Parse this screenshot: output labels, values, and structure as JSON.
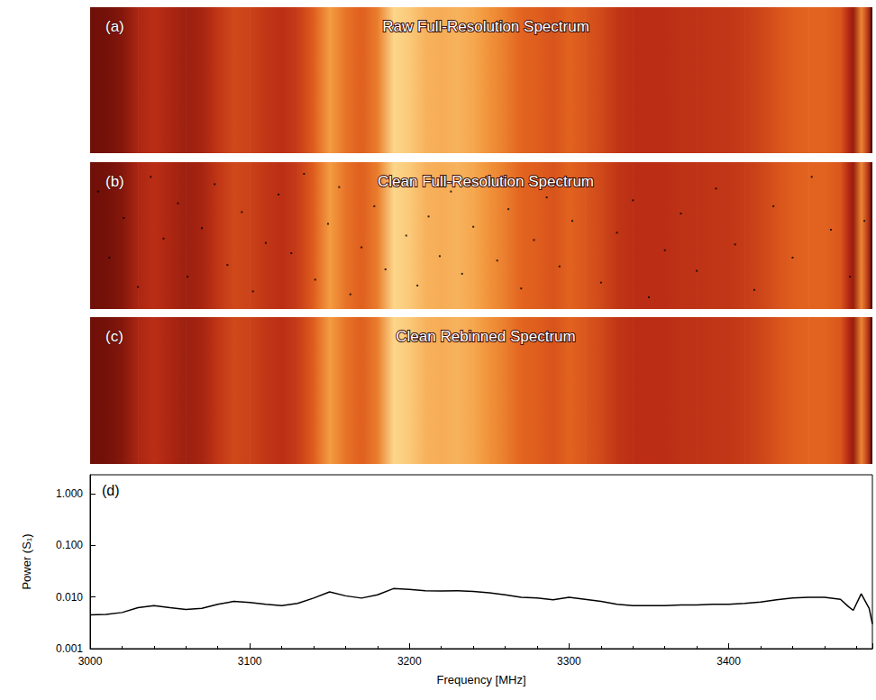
{
  "chart_data": [
    {
      "type": "heatmap",
      "label": "(a)",
      "title": "Raw Full-Resolution Spectrum",
      "xlim": [
        3000,
        3490
      ],
      "ylim": [
        0,
        1
      ],
      "tick_labels": false,
      "x": [
        3000,
        3010,
        3020,
        3030,
        3040,
        3050,
        3060,
        3070,
        3080,
        3090,
        3100,
        3110,
        3120,
        3130,
        3140,
        3150,
        3160,
        3170,
        3180,
        3190,
        3200,
        3210,
        3220,
        3230,
        3240,
        3250,
        3260,
        3270,
        3280,
        3290,
        3300,
        3310,
        3320,
        3330,
        3340,
        3350,
        3360,
        3370,
        3380,
        3390,
        3400,
        3410,
        3420,
        3430,
        3440,
        3450,
        3460,
        3470,
        3475,
        3478,
        3483,
        3488,
        3490
      ],
      "values": [
        0.0045,
        0.0046,
        0.005,
        0.0062,
        0.0068,
        0.0062,
        0.0057,
        0.006,
        0.0072,
        0.0082,
        0.0078,
        0.0072,
        0.0068,
        0.0075,
        0.0095,
        0.0125,
        0.0105,
        0.0095,
        0.011,
        0.0145,
        0.014,
        0.0132,
        0.013,
        0.0132,
        0.0128,
        0.012,
        0.011,
        0.0098,
        0.0095,
        0.0088,
        0.0098,
        0.009,
        0.0082,
        0.0072,
        0.0068,
        0.0068,
        0.0068,
        0.007,
        0.007,
        0.0072,
        0.0072,
        0.0075,
        0.008,
        0.0088,
        0.0095,
        0.0098,
        0.0098,
        0.009,
        0.0065,
        0.0055,
        0.0115,
        0.006,
        0.003
      ]
    },
    {
      "type": "heatmap",
      "label": "(b)",
      "title": "Clean Full-Resolution Spectrum",
      "xlim": [
        3000,
        3490
      ],
      "ylim": [
        0,
        1
      ],
      "tick_labels": false,
      "x": [
        3000,
        3010,
        3020,
        3030,
        3040,
        3050,
        3060,
        3070,
        3080,
        3090,
        3100,
        3110,
        3120,
        3130,
        3140,
        3150,
        3160,
        3170,
        3180,
        3190,
        3200,
        3210,
        3220,
        3230,
        3240,
        3250,
        3260,
        3270,
        3280,
        3290,
        3300,
        3310,
        3320,
        3330,
        3340,
        3350,
        3360,
        3370,
        3380,
        3390,
        3400,
        3410,
        3420,
        3430,
        3440,
        3450,
        3460,
        3470,
        3475,
        3478,
        3483,
        3488,
        3490
      ],
      "values": [
        0.0045,
        0.0046,
        0.005,
        0.0062,
        0.0068,
        0.0062,
        0.0057,
        0.006,
        0.0072,
        0.0082,
        0.0078,
        0.0072,
        0.0068,
        0.0075,
        0.0095,
        0.0125,
        0.0105,
        0.0095,
        0.011,
        0.0145,
        0.014,
        0.0132,
        0.013,
        0.0132,
        0.0128,
        0.012,
        0.011,
        0.0098,
        0.0095,
        0.0088,
        0.0098,
        0.009,
        0.0082,
        0.0072,
        0.0068,
        0.0068,
        0.0068,
        0.007,
        0.007,
        0.0072,
        0.0072,
        0.0075,
        0.008,
        0.0088,
        0.0095,
        0.0098,
        0.0098,
        0.009,
        0.0065,
        0.0055,
        0.0115,
        0.006,
        0.003
      ],
      "flagged": [
        [
          3005,
          0.8
        ],
        [
          3012,
          0.35
        ],
        [
          3021,
          0.62
        ],
        [
          3030,
          0.15
        ],
        [
          3038,
          0.9
        ],
        [
          3046,
          0.48
        ],
        [
          3055,
          0.72
        ],
        [
          3061,
          0.22
        ],
        [
          3070,
          0.55
        ],
        [
          3078,
          0.85
        ],
        [
          3086,
          0.3
        ],
        [
          3095,
          0.66
        ],
        [
          3102,
          0.12
        ],
        [
          3110,
          0.45
        ],
        [
          3118,
          0.78
        ],
        [
          3126,
          0.38
        ],
        [
          3134,
          0.92
        ],
        [
          3141,
          0.2
        ],
        [
          3149,
          0.58
        ],
        [
          3156,
          0.83
        ],
        [
          3163,
          0.1
        ],
        [
          3170,
          0.42
        ],
        [
          3178,
          0.7
        ],
        [
          3185,
          0.27
        ],
        [
          3192,
          0.88
        ],
        [
          3198,
          0.5
        ],
        [
          3205,
          0.16
        ],
        [
          3212,
          0.63
        ],
        [
          3219,
          0.36
        ],
        [
          3226,
          0.8
        ],
        [
          3233,
          0.24
        ],
        [
          3240,
          0.56
        ],
        [
          3248,
          0.9
        ],
        [
          3255,
          0.33
        ],
        [
          3262,
          0.68
        ],
        [
          3270,
          0.14
        ],
        [
          3278,
          0.47
        ],
        [
          3286,
          0.76
        ],
        [
          3294,
          0.29
        ],
        [
          3302,
          0.6
        ],
        [
          3311,
          0.86
        ],
        [
          3320,
          0.18
        ],
        [
          3330,
          0.52
        ],
        [
          3340,
          0.74
        ],
        [
          3350,
          0.08
        ],
        [
          3360,
          0.4
        ],
        [
          3370,
          0.65
        ],
        [
          3380,
          0.26
        ],
        [
          3392,
          0.82
        ],
        [
          3404,
          0.44
        ],
        [
          3416,
          0.13
        ],
        [
          3428,
          0.7
        ],
        [
          3440,
          0.35
        ],
        [
          3452,
          0.9
        ],
        [
          3464,
          0.54
        ],
        [
          3476,
          0.22
        ],
        [
          3485,
          0.6
        ]
      ]
    },
    {
      "type": "heatmap",
      "label": "(c)",
      "title": "Clean Rebinned Spectrum",
      "xlim": [
        3000,
        3490
      ],
      "ylim": [
        0,
        1
      ],
      "tick_labels": false,
      "x": [
        3000,
        3010,
        3020,
        3030,
        3040,
        3050,
        3060,
        3070,
        3080,
        3090,
        3100,
        3110,
        3120,
        3130,
        3140,
        3150,
        3160,
        3170,
        3180,
        3190,
        3200,
        3210,
        3220,
        3230,
        3240,
        3250,
        3260,
        3270,
        3280,
        3290,
        3300,
        3310,
        3320,
        3330,
        3340,
        3350,
        3360,
        3370,
        3380,
        3390,
        3400,
        3410,
        3420,
        3430,
        3440,
        3450,
        3460,
        3470,
        3475,
        3478,
        3483,
        3488,
        3490
      ],
      "values": [
        0.0045,
        0.0046,
        0.005,
        0.0062,
        0.0068,
        0.0062,
        0.0057,
        0.006,
        0.0072,
        0.0082,
        0.0078,
        0.0072,
        0.0068,
        0.0075,
        0.0095,
        0.0125,
        0.0105,
        0.0095,
        0.011,
        0.0145,
        0.014,
        0.0132,
        0.013,
        0.0132,
        0.0128,
        0.012,
        0.011,
        0.0098,
        0.0095,
        0.0088,
        0.0098,
        0.009,
        0.0082,
        0.0072,
        0.0068,
        0.0068,
        0.0068,
        0.007,
        0.007,
        0.0072,
        0.0072,
        0.0075,
        0.008,
        0.0088,
        0.0095,
        0.0098,
        0.0098,
        0.009,
        0.0065,
        0.0055,
        0.0115,
        0.006,
        0.003
      ]
    },
    {
      "type": "line",
      "label": "(d)",
      "xlabel": "Frequency [MHz]",
      "ylabel": "Power (S₁)",
      "color": "#000000",
      "log": "y",
      "xlim": [
        3000,
        3490
      ],
      "xticks": [
        3000,
        3100,
        3200,
        3300,
        3400
      ],
      "ylim": [
        0.001,
        2.3
      ],
      "yticks": [
        0.001,
        {
          "value": 0.01,
          "label": "0.010"
        },
        {
          "value": 0.1,
          "label": "0.100"
        },
        {
          "value": 1,
          "label": "1.000"
        }
      ],
      "x": [
        3000,
        3010,
        3020,
        3030,
        3040,
        3050,
        3060,
        3070,
        3080,
        3090,
        3100,
        3110,
        3120,
        3130,
        3140,
        3150,
        3160,
        3170,
        3180,
        3190,
        3200,
        3210,
        3220,
        3230,
        3240,
        3250,
        3260,
        3270,
        3280,
        3290,
        3300,
        3310,
        3320,
        3330,
        3340,
        3350,
        3360,
        3370,
        3380,
        3390,
        3400,
        3410,
        3420,
        3430,
        3440,
        3450,
        3460,
        3470,
        3475,
        3478,
        3483,
        3488,
        3490
      ],
      "values": [
        0.0045,
        0.0046,
        0.005,
        0.0062,
        0.0068,
        0.0062,
        0.0057,
        0.006,
        0.0072,
        0.0082,
        0.0078,
        0.0072,
        0.0068,
        0.0075,
        0.0095,
        0.0125,
        0.0105,
        0.0095,
        0.011,
        0.0145,
        0.014,
        0.0132,
        0.013,
        0.0132,
        0.0128,
        0.012,
        0.011,
        0.0098,
        0.0095,
        0.0088,
        0.0098,
        0.009,
        0.0082,
        0.0072,
        0.0068,
        0.0068,
        0.0068,
        0.007,
        0.007,
        0.0072,
        0.0072,
        0.0075,
        0.008,
        0.0088,
        0.0095,
        0.0098,
        0.0098,
        0.009,
        0.0065,
        0.0055,
        0.0115,
        0.006,
        0.003
      ]
    }
  ]
}
